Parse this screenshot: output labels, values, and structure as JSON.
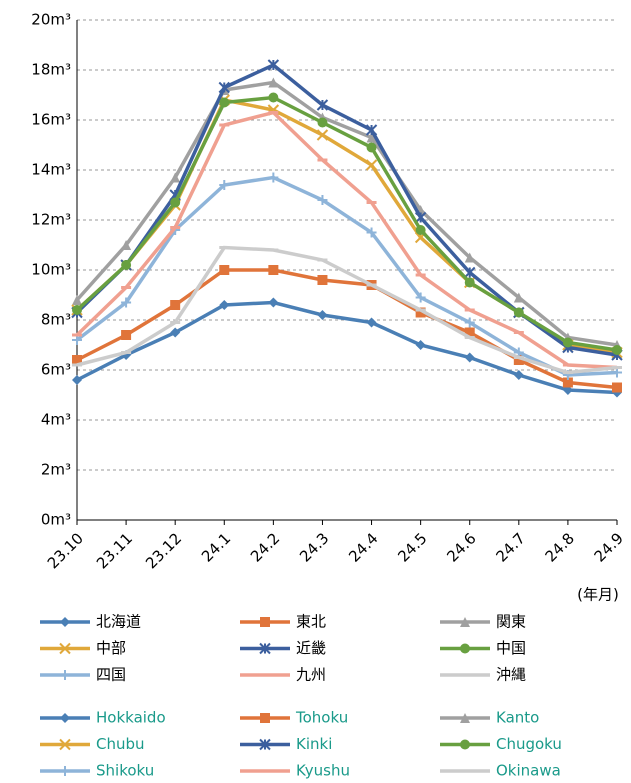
{
  "chart_data": {
    "type": "line",
    "x_label": "(年月)",
    "categories": [
      "23.10",
      "23.11",
      "23.12",
      "24.1",
      "24.2",
      "24.3",
      "24.4",
      "24.5",
      "24.6",
      "24.7",
      "24.8",
      "24.9"
    ],
    "ylim": [
      0,
      20
    ],
    "yticks": [
      {
        "value": 0,
        "label": "0m³"
      },
      {
        "value": 2,
        "label": "2m³"
      },
      {
        "value": 4,
        "label": "4m³"
      },
      {
        "value": 6,
        "label": "6m³"
      },
      {
        "value": 8,
        "label": "8m³"
      },
      {
        "value": 10,
        "label": "10m³"
      },
      {
        "value": 12,
        "label": "12m³"
      },
      {
        "value": 14,
        "label": "14m³"
      },
      {
        "value": 16,
        "label": "16m³"
      },
      {
        "value": 18,
        "label": "18m³"
      },
      {
        "value": 20,
        "label": "20m³"
      }
    ],
    "grid": true,
    "series": [
      {
        "name": "北海道",
        "name_en": "Hokkaido",
        "color": "#4a7fb5",
        "marker": "diamond",
        "values": [
          5.6,
          6.6,
          7.5,
          8.6,
          8.7,
          8.2,
          7.9,
          7.0,
          6.5,
          5.8,
          5.2,
          5.1
        ]
      },
      {
        "name": "東北",
        "name_en": "Tohoku",
        "color": "#e0743a",
        "marker": "square",
        "values": [
          6.4,
          7.4,
          8.6,
          10.0,
          10.0,
          9.6,
          9.4,
          8.3,
          7.5,
          6.4,
          5.5,
          5.3
        ]
      },
      {
        "name": "関東",
        "name_en": "Kanto",
        "color": "#a0a0a0",
        "marker": "triangle",
        "values": [
          8.8,
          11.0,
          13.7,
          17.2,
          17.5,
          16.1,
          15.3,
          12.4,
          10.5,
          8.9,
          7.3,
          7.0
        ]
      },
      {
        "name": "中部",
        "name_en": "Chubu",
        "color": "#e0a83a",
        "marker": "x",
        "values": [
          8.4,
          10.2,
          12.6,
          16.8,
          16.4,
          15.4,
          14.2,
          11.3,
          9.5,
          8.3,
          7.0,
          6.7
        ]
      },
      {
        "name": "近畿",
        "name_en": "Kinki",
        "color": "#3c5f9e",
        "marker": "star",
        "values": [
          8.3,
          10.2,
          13.0,
          17.3,
          18.2,
          16.6,
          15.6,
          12.1,
          9.9,
          8.3,
          6.9,
          6.6
        ]
      },
      {
        "name": "中国",
        "name_en": "Chugoku",
        "color": "#68a040",
        "marker": "circle",
        "values": [
          8.4,
          10.2,
          12.7,
          16.7,
          16.9,
          15.9,
          14.9,
          11.6,
          9.5,
          8.3,
          7.1,
          6.8
        ]
      },
      {
        "name": "四国",
        "name_en": "Shikoku",
        "color": "#8eb4d9",
        "marker": "plus",
        "values": [
          7.2,
          8.7,
          11.6,
          13.4,
          13.7,
          12.8,
          11.5,
          8.9,
          7.9,
          6.7,
          5.8,
          5.9
        ]
      },
      {
        "name": "九州",
        "name_en": "Kyushu",
        "color": "#f0a090",
        "marker": "dash",
        "values": [
          7.4,
          9.3,
          11.7,
          15.8,
          16.3,
          14.4,
          12.7,
          9.8,
          8.4,
          7.5,
          6.2,
          6.1
        ]
      },
      {
        "name": "沖縄",
        "name_en": "Okinawa",
        "color": "#cccccc",
        "marker": "dash",
        "values": [
          6.2,
          6.7,
          7.9,
          10.9,
          10.8,
          10.4,
          9.4,
          8.4,
          7.3,
          6.5,
          5.9,
          6.1
        ]
      }
    ]
  }
}
